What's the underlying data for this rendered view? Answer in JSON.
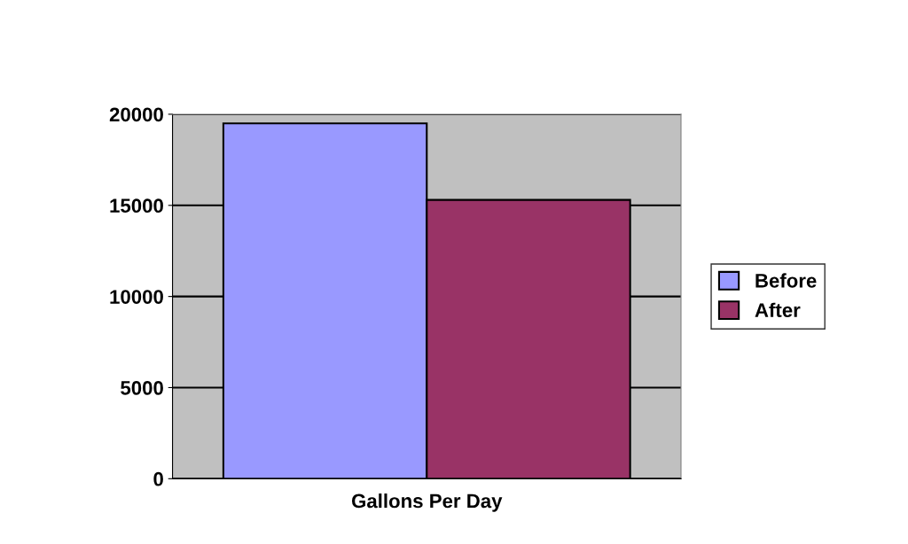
{
  "chart_data": {
    "type": "bar",
    "categories": [
      "Gallons Per Day"
    ],
    "series": [
      {
        "name": "Before",
        "color": "#9999ff",
        "values": [
          19500
        ]
      },
      {
        "name": "After",
        "color": "#993366",
        "values": [
          15300
        ]
      }
    ],
    "ylim": [
      0,
      20000
    ],
    "yticks": [
      0,
      5000,
      10000,
      15000,
      20000
    ],
    "grid": "y",
    "legend": "right"
  }
}
